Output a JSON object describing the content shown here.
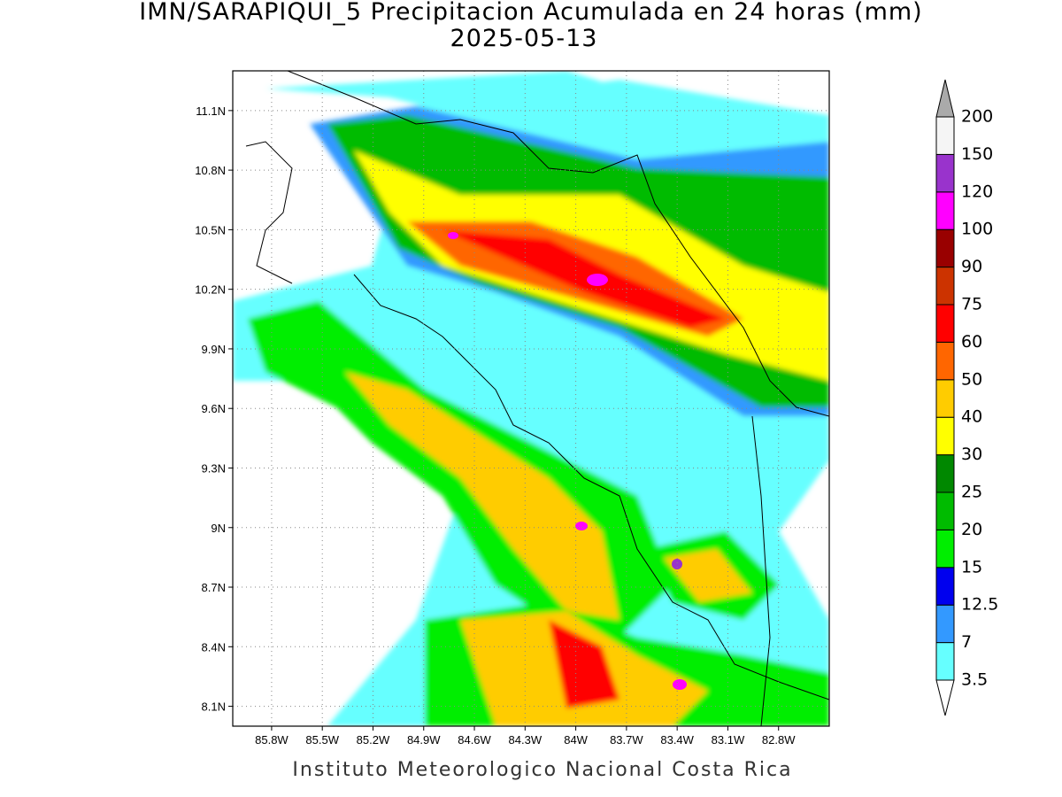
{
  "title": "IMN/SARAPIQUI_5 Precipitacion Acumulada en 24 horas (mm)",
  "subtitle": "2025-05-13",
  "footer": "Instituto Meteorologico Nacional Costa Rica",
  "map": {
    "lon_range": [
      -86.03,
      -82.5
    ],
    "lat_range": [
      8.0,
      11.3
    ],
    "lat_ticks": [
      {
        "value": 8.1,
        "label": "8.1N"
      },
      {
        "value": 8.4,
        "label": "8.4N"
      },
      {
        "value": 8.7,
        "label": "8.7N"
      },
      {
        "value": 9.0,
        "label": "9N"
      },
      {
        "value": 9.3,
        "label": "9.3N"
      },
      {
        "value": 9.6,
        "label": "9.6N"
      },
      {
        "value": 9.9,
        "label": "9.9N"
      },
      {
        "value": 10.2,
        "label": "10.2N"
      },
      {
        "value": 10.5,
        "label": "10.5N"
      },
      {
        "value": 10.8,
        "label": "10.8N"
      },
      {
        "value": 11.1,
        "label": "11.1N"
      }
    ],
    "lon_ticks": [
      {
        "value": -85.8,
        "label": "85.8W"
      },
      {
        "value": -85.5,
        "label": "85.5W"
      },
      {
        "value": -85.2,
        "label": "85.2W"
      },
      {
        "value": -84.9,
        "label": "84.9W"
      },
      {
        "value": -84.6,
        "label": "84.6W"
      },
      {
        "value": -84.3,
        "label": "84.3W"
      },
      {
        "value": -84.0,
        "label": "84W"
      },
      {
        "value": -83.7,
        "label": "83.7W"
      },
      {
        "value": -83.4,
        "label": "83.4W"
      },
      {
        "value": -83.1,
        "label": "83.1W"
      },
      {
        "value": -82.8,
        "label": "82.8W"
      }
    ]
  },
  "colorbar": {
    "levels": [
      3.5,
      7,
      12.5,
      15,
      20,
      25,
      30,
      40,
      50,
      60,
      75,
      90,
      100,
      120,
      150,
      200
    ],
    "colors": [
      "#ffffff",
      "#66ffff",
      "#3399ff",
      "#0000ee",
      "#00ee00",
      "#00bb00",
      "#008800",
      "#ffff00",
      "#ffcc00",
      "#ff6600",
      "#ff0000",
      "#cc3300",
      "#990000",
      "#ff00ff",
      "#9933cc",
      "#f5f5f5",
      "#aaaaaa"
    ]
  }
}
